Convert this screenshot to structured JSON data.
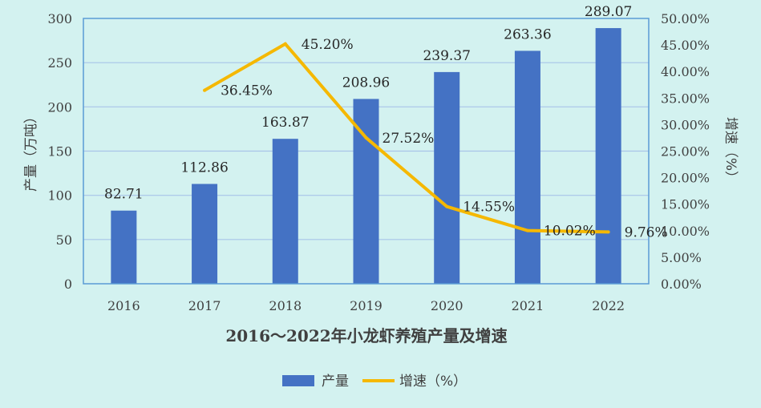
{
  "chart_data": {
    "type": "bar",
    "title": "2016～2022年小龙虾养殖产量及增速",
    "categories": [
      "2016",
      "2017",
      "2018",
      "2019",
      "2020",
      "2021",
      "2022"
    ],
    "series": [
      {
        "name": "产量",
        "type": "bar",
        "axis": "left",
        "values": [
          82.71,
          112.86,
          163.87,
          208.96,
          239.37,
          263.36,
          289.07
        ],
        "labels": [
          "82.71",
          "112.86",
          "163.87",
          "208.96",
          "239.37",
          "263.36",
          "289.07"
        ],
        "color": "#4472c4"
      },
      {
        "name": "增速（%）",
        "type": "line",
        "axis": "right",
        "values": [
          null,
          36.45,
          45.2,
          27.52,
          14.55,
          10.02,
          9.76
        ],
        "labels": [
          "",
          "36.45%",
          "45.20%",
          "27.52%",
          "14.55%",
          "10.02%",
          "9.76%"
        ],
        "color": "#f5b800"
      }
    ],
    "ylabel": "产量（万吨）",
    "y2label": "增速（%）",
    "ylim": [
      0,
      300
    ],
    "yticks": [
      "0",
      "50",
      "100",
      "150",
      "200",
      "250",
      "300"
    ],
    "y2lim": [
      0,
      50
    ],
    "y2ticks": [
      "0.00%",
      "5.00%",
      "10.00%",
      "15.00%",
      "20.00%",
      "25.00%",
      "30.00%",
      "35.00%",
      "40.00%",
      "45.00%",
      "50.00%"
    ],
    "grid": true,
    "legend_position": "bottom"
  },
  "colors": {
    "background": "#d3f2f0",
    "grid": "#a8c4e8",
    "frame": "#5b9bd5"
  }
}
